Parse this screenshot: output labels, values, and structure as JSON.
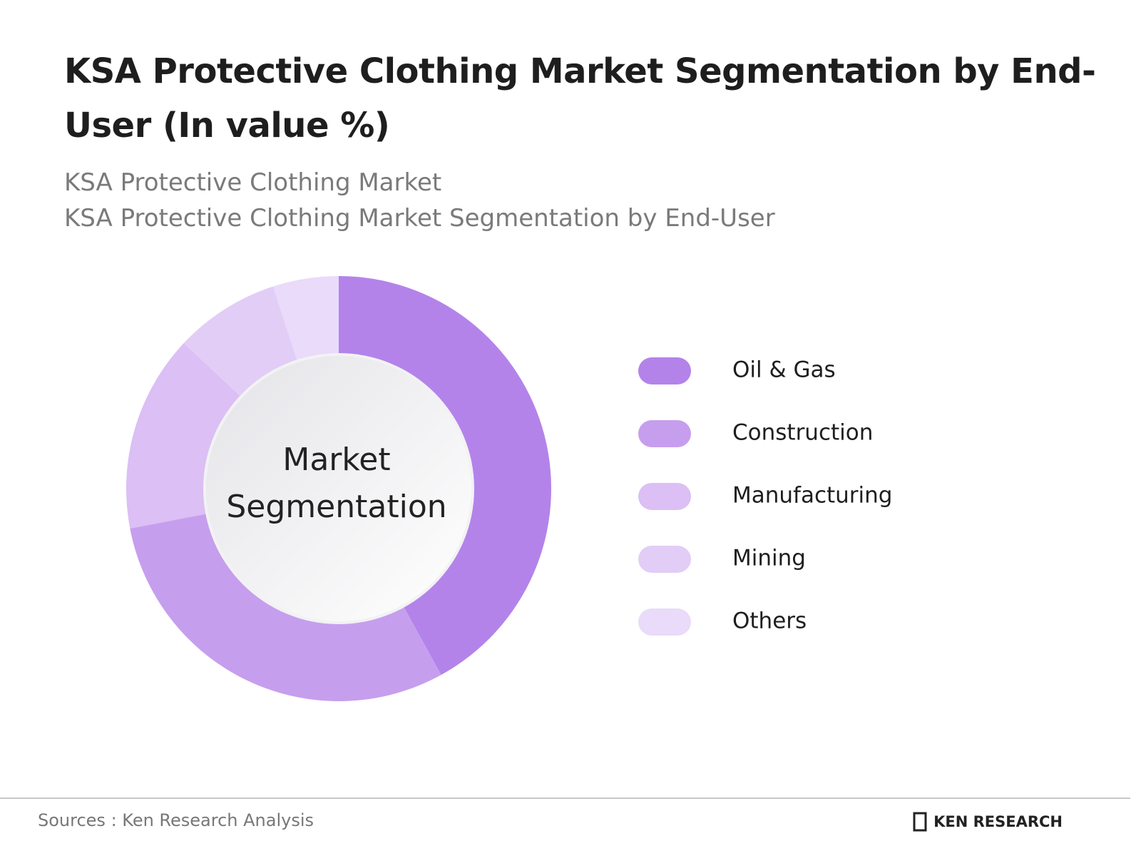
{
  "chart_data": {
    "type": "donut",
    "title": "KSA Protective Clothing Market Segmentation by End-User (In value %)",
    "subtitles": [
      "KSA Protective Clothing Market",
      "KSA Protective Clothing Market Segmentation by End-User"
    ],
    "center_label": [
      "Market",
      "Segmentation"
    ],
    "categories": [
      "Oil & Gas",
      "Construction",
      "Manufacturing",
      "Mining",
      "Others"
    ],
    "values": [
      42,
      30,
      15,
      8,
      5
    ],
    "colors": [
      "#b383ea",
      "#c69eee",
      "#dbbff5",
      "#e2cdf6",
      "#e9dbf9"
    ],
    "legend": "right",
    "source": "Sources : Ken Research Analysis",
    "logo": "KEN RESEARCH"
  }
}
